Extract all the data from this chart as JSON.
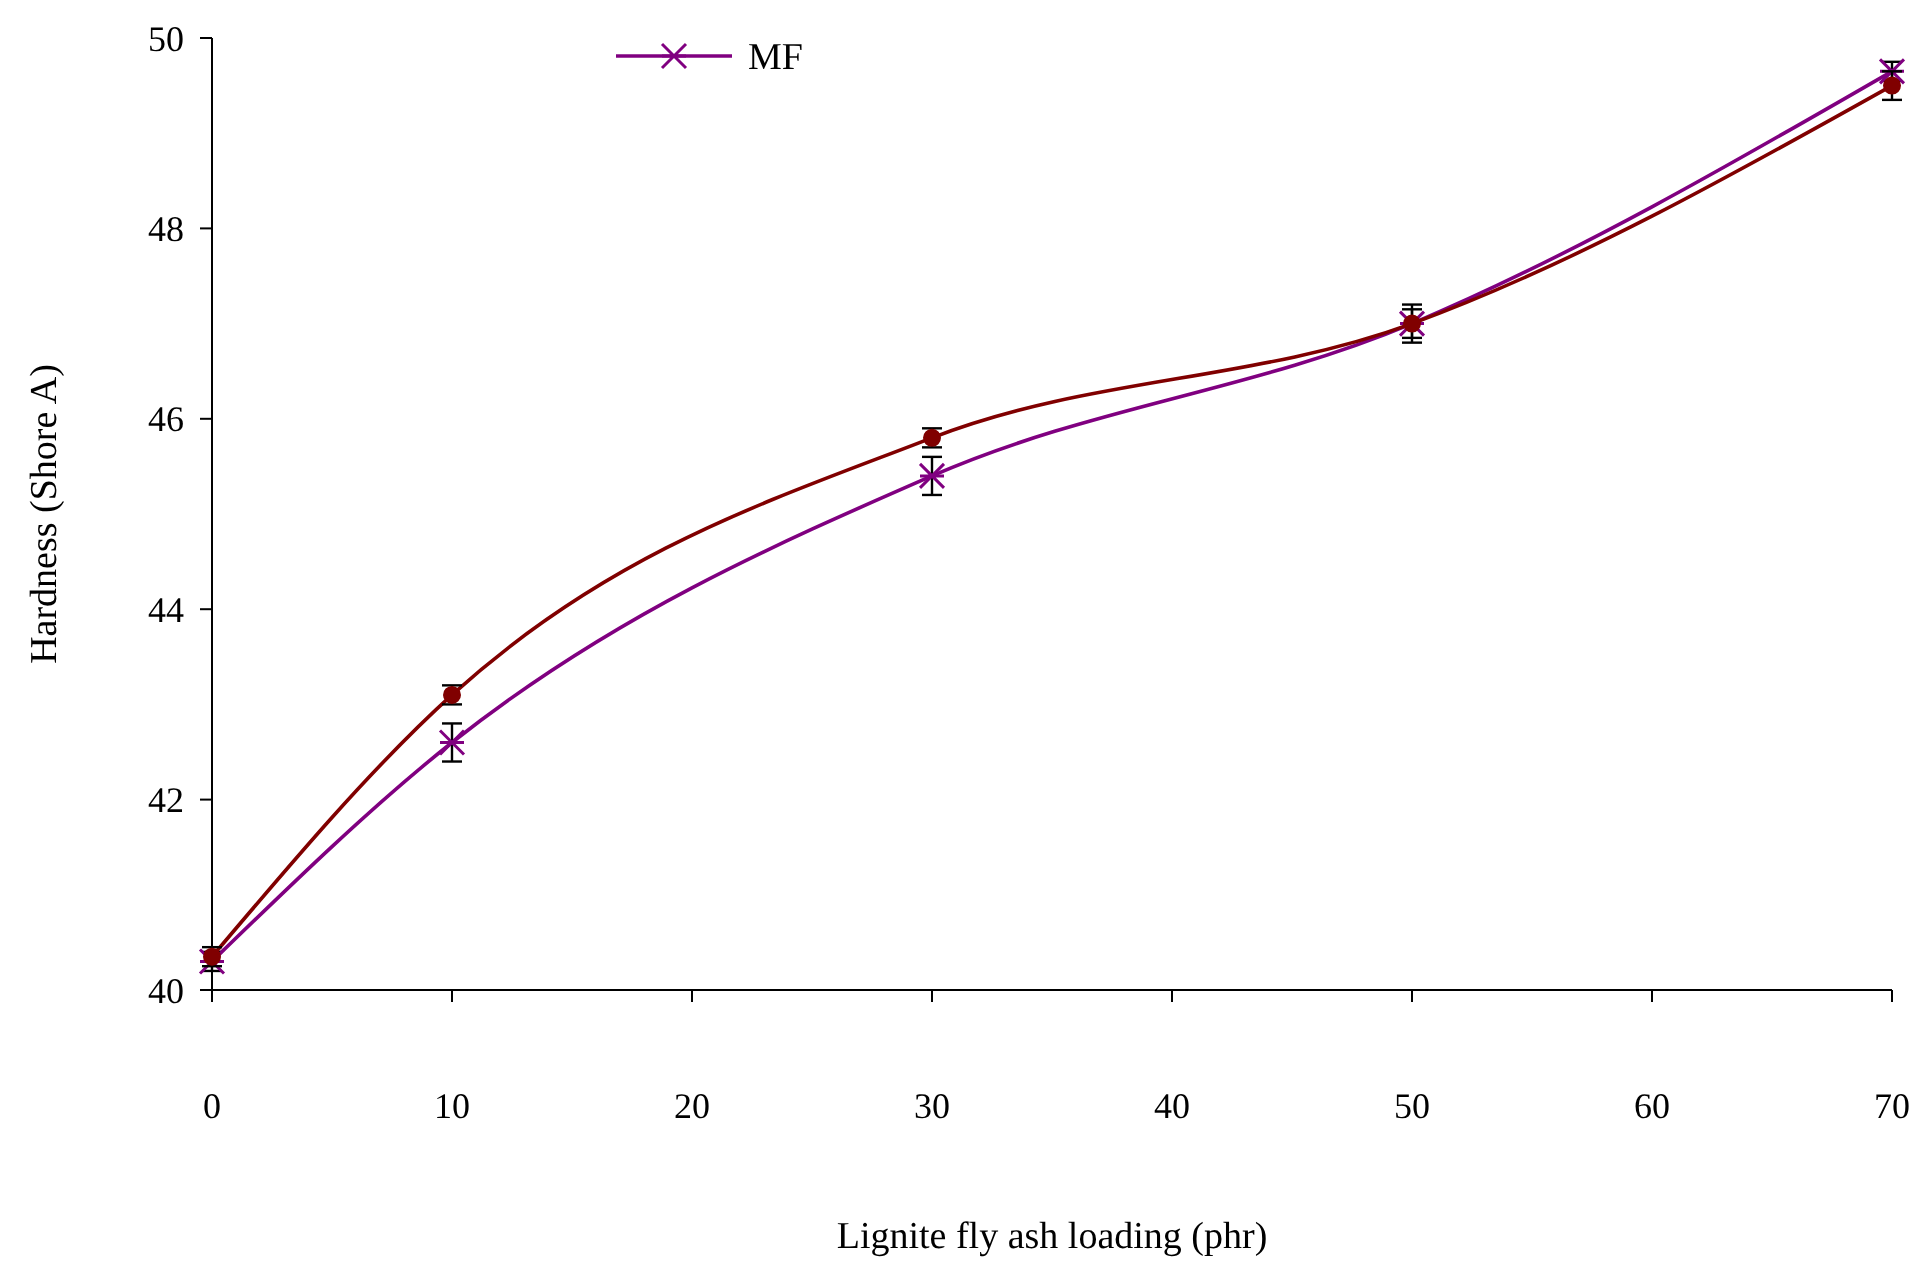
{
  "chart_data": {
    "type": "line",
    "xlabel": "Lignite fly ash loading (phr)",
    "ylabel": "Hardness (Shore A)",
    "x": [
      0,
      10,
      30,
      50,
      70
    ],
    "xlim": [
      0,
      70
    ],
    "xticks": [
      0,
      10,
      20,
      30,
      40,
      50,
      60,
      70
    ],
    "ylim": [
      40,
      50
    ],
    "yticks": [
      40,
      42,
      44,
      46,
      48,
      50
    ],
    "grid": false,
    "legend": "top",
    "line_style": "solid",
    "series": [
      {
        "name": "MF",
        "color": "#800080",
        "marker": "cross",
        "values": [
          40.3,
          42.6,
          45.4,
          47.0,
          49.65
        ],
        "errors": [
          0.1,
          0.2,
          0.2,
          0.15,
          0.1
        ]
      },
      {
        "color": "#800000",
        "marker": "circle",
        "values": [
          40.35,
          43.1,
          45.8,
          47.0,
          49.5
        ],
        "errors": [
          0.1,
          0.1,
          0.1,
          0.2,
          0.15
        ]
      }
    ]
  }
}
